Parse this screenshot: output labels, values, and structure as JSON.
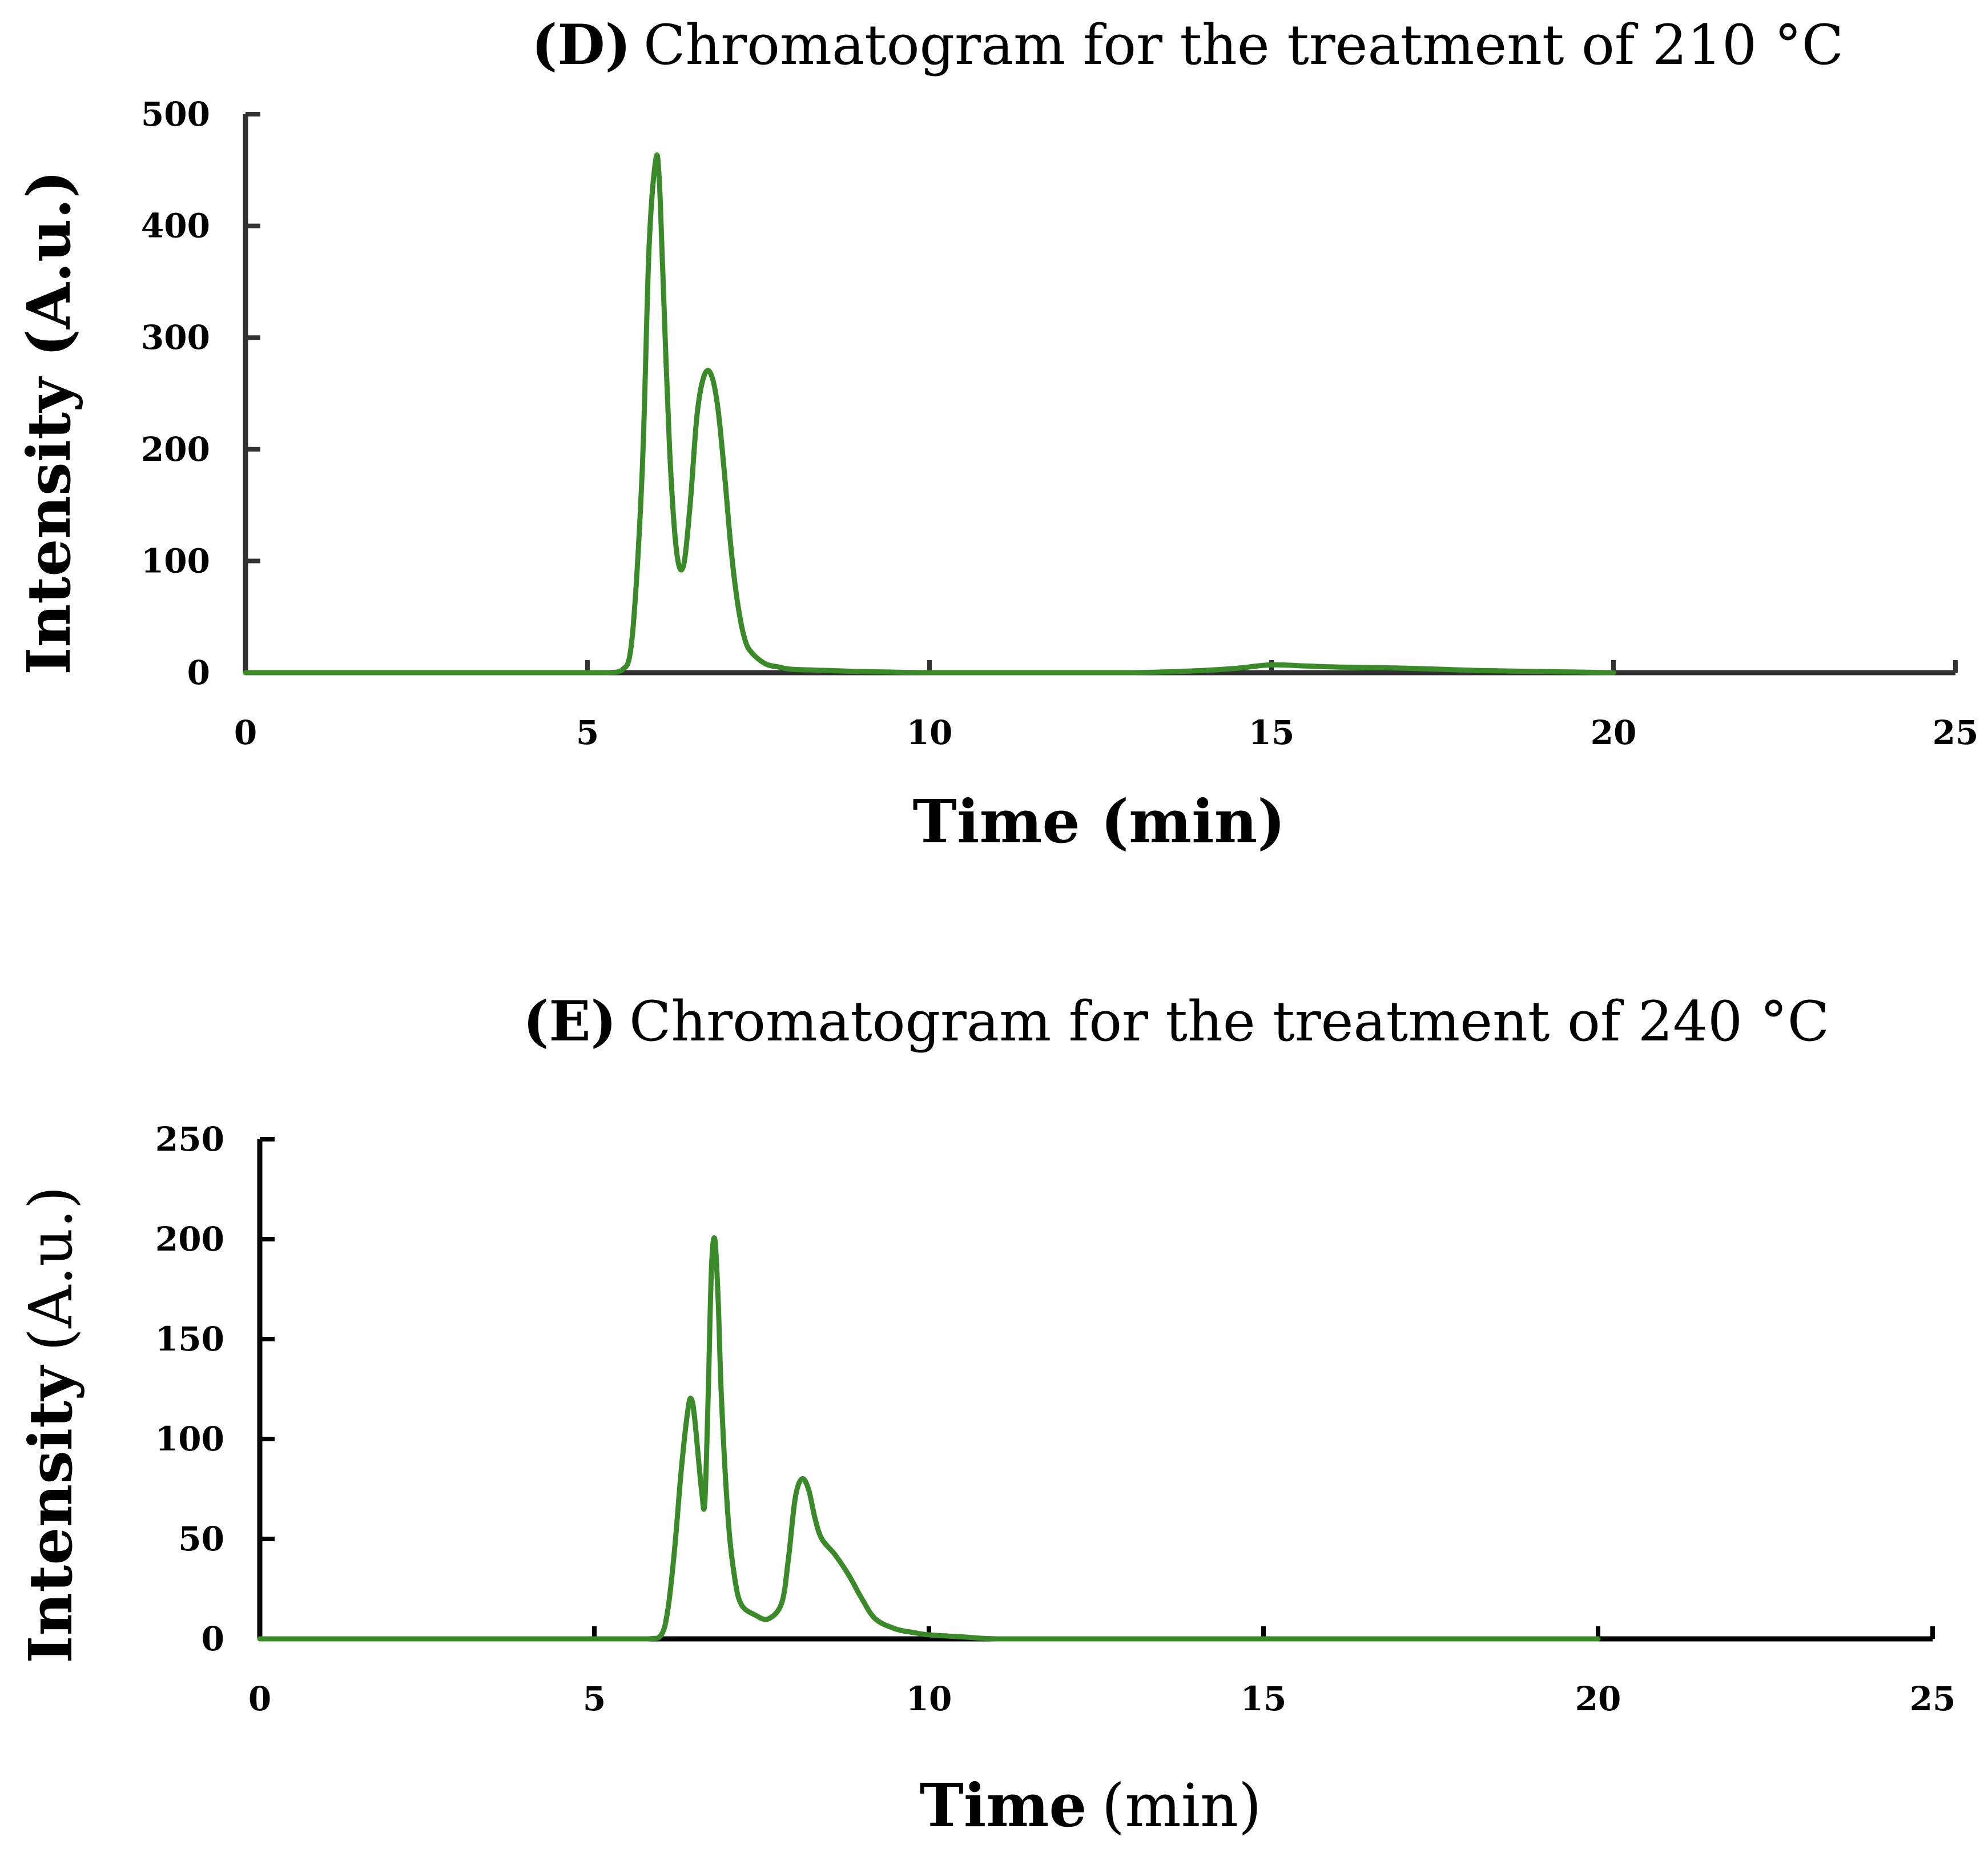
{
  "chart_data": [
    {
      "type": "line",
      "panel": "D",
      "title_prefix": "(D)",
      "title_text": "Chromatogram for the treatment of 210 °C",
      "xlabel": "Time (min)",
      "ylabel": "Intensity (A.u.)",
      "xlim": [
        0,
        25
      ],
      "ylim": [
        0,
        500
      ],
      "xticks": [
        0,
        5,
        10,
        15,
        20,
        25
      ],
      "yticks": [
        0,
        100,
        200,
        300,
        400,
        500
      ],
      "axis_color": "#333333",
      "line_color": "#3a8a2a",
      "series": [
        {
          "name": "210 °C",
          "x": [
            0,
            1,
            2,
            3,
            4,
            5,
            5.3,
            5.5,
            5.65,
            5.8,
            5.9,
            6.0,
            6.05,
            6.1,
            6.2,
            6.3,
            6.4,
            6.5,
            6.6,
            6.7,
            6.8,
            6.9,
            7.0,
            7.1,
            7.2,
            7.3,
            7.4,
            7.6,
            7.8,
            8.0,
            8.5,
            9,
            10,
            11,
            12,
            13,
            14,
            14.5,
            15,
            15.5,
            16,
            17,
            18,
            19,
            20
          ],
          "y": [
            0,
            0,
            0,
            0,
            0,
            0,
            0,
            2,
            30,
            180,
            380,
            460,
            440,
            360,
            200,
            110,
            95,
            150,
            230,
            265,
            268,
            240,
            180,
            110,
            60,
            30,
            18,
            8,
            5,
            3,
            2,
            1,
            0,
            0,
            0,
            0,
            2,
            4,
            7,
            6,
            5,
            4,
            2,
            1,
            0
          ]
        }
      ]
    },
    {
      "type": "line",
      "panel": "E",
      "title_prefix": "(E)",
      "title_text": "Chromatogram for the treatment of 240 °C",
      "xlabel_bold": "Time",
      "xlabel_rest": "(min)",
      "ylabel_bold": "Intensity",
      "ylabel_rest": "(A.u.)",
      "xlim": [
        0,
        25
      ],
      "ylim": [
        0,
        250
      ],
      "xticks": [
        0,
        5,
        10,
        15,
        20,
        25
      ],
      "yticks": [
        0,
        50,
        100,
        150,
        200,
        250
      ],
      "axis_color": "#000000",
      "line_color": "#3a8a2a",
      "series": [
        {
          "name": "240 °C",
          "x": [
            0,
            1,
            2,
            3,
            4,
            5,
            5.8,
            6.0,
            6.1,
            6.2,
            6.3,
            6.4,
            6.45,
            6.5,
            6.6,
            6.65,
            6.7,
            6.75,
            6.8,
            6.85,
            6.9,
            7.0,
            7.1,
            7.2,
            7.4,
            7.6,
            7.8,
            7.9,
            8.0,
            8.1,
            8.2,
            8.3,
            8.4,
            8.6,
            8.8,
            9.0,
            9.2,
            9.5,
            9.8,
            10.0,
            10.5,
            11,
            12,
            13,
            14,
            15,
            16,
            17,
            18,
            19,
            20
          ],
          "y": [
            0,
            0,
            0,
            0,
            0,
            0,
            0,
            2,
            15,
            45,
            85,
            115,
            120,
            110,
            75,
            68,
            120,
            185,
            200,
            170,
            120,
            60,
            30,
            17,
            12,
            10,
            18,
            40,
            70,
            80,
            75,
            60,
            50,
            42,
            32,
            20,
            10,
            5,
            3,
            2,
            1,
            0,
            0,
            0,
            0,
            0,
            0,
            0,
            0,
            0,
            0
          ]
        }
      ]
    }
  ]
}
